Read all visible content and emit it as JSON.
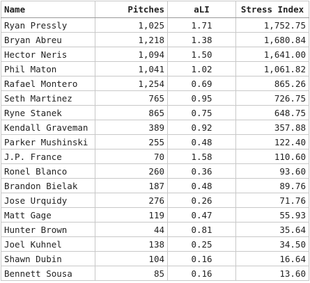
{
  "table": {
    "header": [
      "Name",
      "Pitches",
      "aLI",
      "Stress Index"
    ],
    "rows": [
      [
        "Ryan Pressly",
        "1,025",
        "1.71",
        "1,752.75"
      ],
      [
        "Bryan Abreu",
        "1,218",
        "1.38",
        "1,680.84"
      ],
      [
        "Hector Neris",
        "1,094",
        "1.50",
        "1,641.00"
      ],
      [
        "Phil Maton",
        "1,041",
        "1.02",
        "1,061.82"
      ],
      [
        "Rafael Montero",
        "1,254",
        "0.69",
        "865.26"
      ],
      [
        "Seth Martinez",
        "765",
        "0.95",
        "726.75"
      ],
      [
        "Ryne Stanek",
        "865",
        "0.75",
        "648.75"
      ],
      [
        "Kendall Graveman",
        "389",
        "0.92",
        "357.88"
      ],
      [
        "Parker Mushinski",
        "255",
        "0.48",
        "122.40"
      ],
      [
        "J.P. France",
        "70",
        "1.58",
        "110.60"
      ],
      [
        "Ronel Blanco",
        "260",
        "0.36",
        "93.60"
      ],
      [
        "Brandon Bielak",
        "187",
        "0.48",
        "89.76"
      ],
      [
        "Jose Urquidy",
        "276",
        "0.26",
        "71.76"
      ],
      [
        "Matt Gage",
        "119",
        "0.47",
        "55.93"
      ],
      [
        "Hunter Brown",
        "44",
        "0.81",
        "35.64"
      ],
      [
        "Joel Kuhnel",
        "138",
        "0.25",
        "34.50"
      ],
      [
        "Shawn Dubin",
        "104",
        "0.16",
        "16.64"
      ],
      [
        "Bennett Sousa",
        "85",
        "0.16",
        "13.60"
      ]
    ]
  }
}
